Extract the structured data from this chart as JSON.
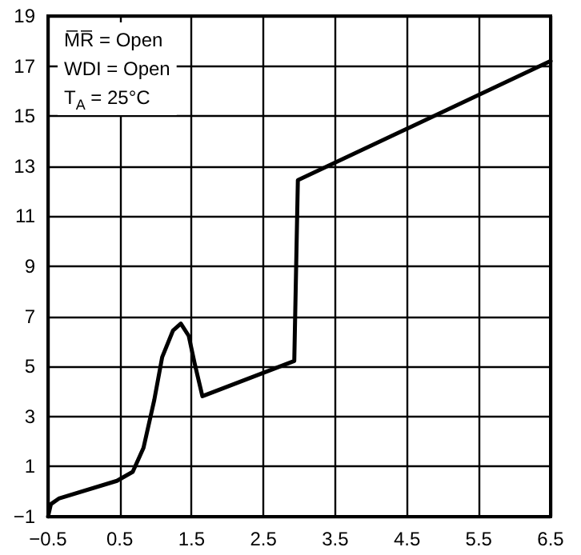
{
  "chart_data": {
    "type": "line",
    "series": [
      {
        "color": "#000000",
        "x": [
          -0.5,
          -0.46,
          -0.35,
          0.46,
          0.68,
          0.83,
          0.98,
          1.09,
          1.24,
          1.35,
          1.46,
          1.54,
          1.65,
          2.93,
          2.98,
          6.5
        ],
        "values": [
          -1,
          -0.5,
          -0.28,
          0.43,
          0.79,
          1.75,
          3.66,
          5.37,
          6.43,
          6.71,
          6.22,
          5.15,
          3.81,
          5.22,
          12.44,
          17.2
        ]
      }
    ],
    "xlim": [
      -0.5,
      6.5
    ],
    "xticks": [
      -0.5,
      0.5,
      1.5,
      2.5,
      3.5,
      4.5,
      5.5,
      6.5
    ],
    "ylim": [
      -1,
      19
    ],
    "yticks": [
      -1,
      1,
      3,
      5,
      7,
      9,
      11,
      13,
      15,
      17,
      19
    ],
    "grid": true,
    "marker": "none",
    "line_style": "solid",
    "annotations": [
      "M̅R̅ = Open",
      "WDI = Open",
      "T$_{A}$ = 25°C"
    ]
  }
}
